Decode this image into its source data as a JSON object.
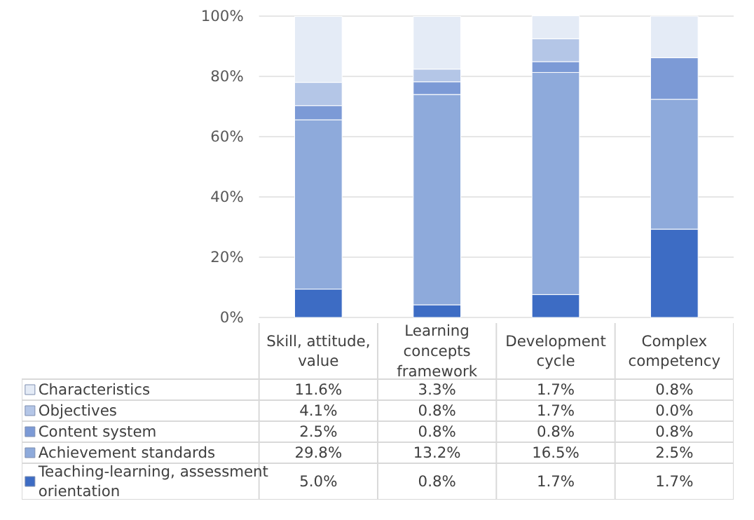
{
  "chart_data": [
    {
      "type": "bar",
      "stacked": true,
      "grid": "y",
      "legend": "bottom",
      "categories": [
        "Skill, attitude, value",
        "Learning concepts framework",
        "Development cycle",
        "Complex competency"
      ],
      "ylim": [
        0,
        100
      ],
      "yticks": [
        {
          "value": 0,
          "label": "0%"
        },
        {
          "value": 20,
          "label": "20%"
        },
        {
          "value": 40,
          "label": "40%"
        },
        {
          "value": 60,
          "label": "60%"
        },
        {
          "value": 80,
          "label": "80%"
        },
        {
          "value": 100,
          "label": "100%"
        }
      ],
      "series": [
        {
          "name": "Teaching-learning, assessment orientation",
          "color": "#3d6cc4",
          "values": [
            9.4,
            4.2,
            7.6,
            29.3
          ]
        },
        {
          "name": "Achievement standards",
          "color": "#8eaadb",
          "values": [
            56.2,
            69.8,
            73.7,
            43.1
          ]
        },
        {
          "name": "Content system",
          "color": "#7c9ad6",
          "values": [
            4.7,
            4.2,
            3.6,
            13.8
          ]
        },
        {
          "name": "Objectives",
          "color": "#b4c6e7",
          "values": [
            7.7,
            4.2,
            7.6,
            0.0
          ]
        },
        {
          "name": "Characteristics",
          "color": "#e4ebf6",
          "values": [
            21.9,
            17.5,
            7.6,
            13.8
          ]
        }
      ]
    },
    {
      "type": "other",
      "annotations": [
        "11.6%",
        "3.3%",
        "1.7%",
        "0.8%",
        "4.1%",
        "0.8%",
        "1.7%",
        "0.0%",
        "2.5%",
        "0.8%",
        "0.8%",
        "0.8%",
        "29.8%",
        "13.2%",
        "16.5%",
        "2.5%",
        "5.0%",
        "0.8%",
        "1.7%",
        "1.7%"
      ]
    }
  ]
}
